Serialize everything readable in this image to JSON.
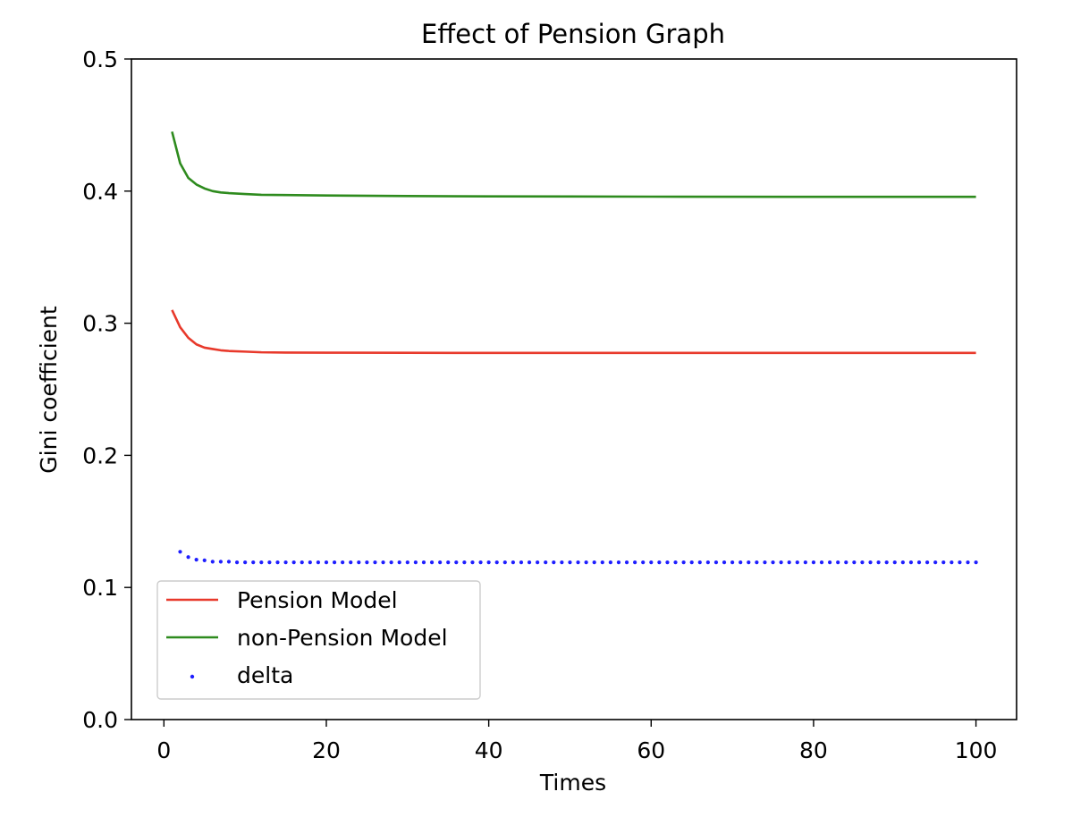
{
  "chart_data": {
    "type": "line",
    "title": "Effect of Pension Graph",
    "xlabel": "Times",
    "ylabel": "Gini coefficient",
    "xlim": [
      -4,
      105
    ],
    "ylim": [
      0.0,
      0.5
    ],
    "xticks": [
      0,
      20,
      40,
      60,
      80,
      100
    ],
    "xtick_labels": [
      "0",
      "20",
      "40",
      "60",
      "80",
      "100"
    ],
    "yticks": [
      0.0,
      0.1,
      0.2,
      0.3,
      0.4,
      0.5
    ],
    "ytick_labels": [
      "0.0",
      "0.1",
      "0.2",
      "0.3",
      "0.4",
      "0.5"
    ],
    "grid": false,
    "legend_position": "lower-left",
    "colors": {
      "pension": "#e8392b",
      "non_pension": "#2e8b1e",
      "delta": "#1f1fff"
    },
    "series": [
      {
        "name": "Pension Model",
        "style": "line",
        "color": "#e8392b",
        "x": [
          1,
          2,
          3,
          4,
          5,
          6,
          7,
          8,
          10,
          12,
          15,
          20,
          30,
          40,
          60,
          80,
          100
        ],
        "y": [
          0.31,
          0.297,
          0.289,
          0.284,
          0.2815,
          0.2805,
          0.2795,
          0.279,
          0.2785,
          0.278,
          0.2778,
          0.2777,
          0.2776,
          0.2775,
          0.2775,
          0.2775,
          0.2775
        ]
      },
      {
        "name": "non-Pension Model",
        "style": "line",
        "color": "#2e8b1e",
        "x": [
          1,
          2,
          3,
          4,
          5,
          6,
          7,
          8,
          10,
          12,
          15,
          20,
          30,
          40,
          60,
          80,
          100
        ],
        "y": [
          0.445,
          0.421,
          0.41,
          0.405,
          0.402,
          0.4,
          0.399,
          0.3985,
          0.3978,
          0.3972,
          0.397,
          0.3967,
          0.3963,
          0.396,
          0.3958,
          0.3957,
          0.3957
        ]
      },
      {
        "name": "delta",
        "style": "scatter",
        "color": "#1f1fff",
        "x": [
          2,
          3,
          4,
          5,
          6,
          7,
          8,
          9,
          10,
          11,
          12,
          13,
          14,
          15,
          16,
          17,
          18,
          19,
          20,
          21,
          22,
          23,
          24,
          25,
          26,
          27,
          28,
          29,
          30,
          31,
          32,
          33,
          34,
          35,
          36,
          37,
          38,
          39,
          40,
          41,
          42,
          43,
          44,
          45,
          46,
          47,
          48,
          49,
          50,
          51,
          52,
          53,
          54,
          55,
          56,
          57,
          58,
          59,
          60,
          61,
          62,
          63,
          64,
          65,
          66,
          67,
          68,
          69,
          70,
          71,
          72,
          73,
          74,
          75,
          76,
          77,
          78,
          79,
          80,
          81,
          82,
          83,
          84,
          85,
          86,
          87,
          88,
          89,
          90,
          91,
          92,
          93,
          94,
          95,
          96,
          97,
          98,
          99,
          100
        ],
        "y": [
          0.127,
          0.123,
          0.121,
          0.1205,
          0.1195,
          0.1195,
          0.1195,
          0.119,
          0.119,
          0.119,
          0.119,
          0.119,
          0.119,
          0.119,
          0.119,
          0.119,
          0.119,
          0.119,
          0.119,
          0.119,
          0.119,
          0.119,
          0.119,
          0.119,
          0.119,
          0.119,
          0.119,
          0.119,
          0.119,
          0.119,
          0.119,
          0.119,
          0.119,
          0.119,
          0.119,
          0.119,
          0.119,
          0.119,
          0.119,
          0.119,
          0.119,
          0.119,
          0.119,
          0.119,
          0.119,
          0.119,
          0.119,
          0.119,
          0.119,
          0.119,
          0.119,
          0.119,
          0.119,
          0.119,
          0.119,
          0.119,
          0.119,
          0.119,
          0.119,
          0.119,
          0.119,
          0.119,
          0.119,
          0.119,
          0.119,
          0.119,
          0.119,
          0.119,
          0.119,
          0.119,
          0.119,
          0.119,
          0.119,
          0.119,
          0.119,
          0.119,
          0.119,
          0.119,
          0.119,
          0.119,
          0.119,
          0.119,
          0.119,
          0.119,
          0.119,
          0.119,
          0.119,
          0.119,
          0.119,
          0.119,
          0.119,
          0.119,
          0.119,
          0.119,
          0.119,
          0.119,
          0.119,
          0.119,
          0.119
        ]
      }
    ]
  }
}
